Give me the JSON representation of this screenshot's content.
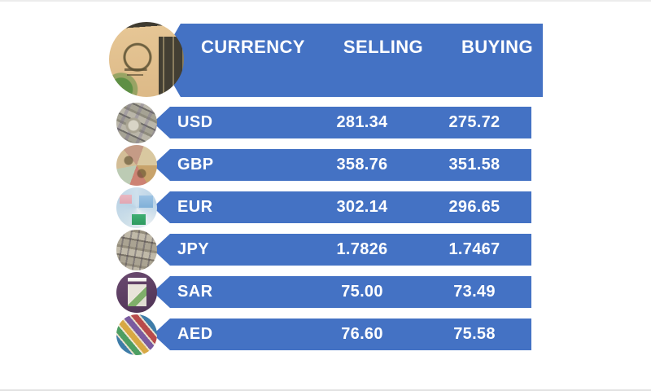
{
  "page": {
    "background": "#ffffff",
    "top_border_color": "#ececec",
    "bottom_border_color": "#e2e2e2"
  },
  "theme": {
    "bar_blue": "#4472C4",
    "text_color": "#ffffff"
  },
  "header": {
    "logo_alt": "National Bank of Pakistan building photo",
    "columns": {
      "currency": "CURRENCY",
      "selling": "SELLING",
      "buying": "BUYING"
    }
  },
  "rates": {
    "rows": [
      {
        "code": "USD",
        "selling": "281.34",
        "buying": "275.72",
        "image_alt": "US dollar banknotes"
      },
      {
        "code": "GBP",
        "selling": "358.76",
        "buying": "351.58",
        "image_alt": "British pound banknotes"
      },
      {
        "code": "EUR",
        "selling": "302.14",
        "buying": "296.65",
        "image_alt": "Euro banknotes"
      },
      {
        "code": "JPY",
        "selling": "1.7826",
        "buying": "1.7467",
        "image_alt": "Japanese yen banknotes"
      },
      {
        "code": "SAR",
        "selling": "75.00",
        "buying": "73.49",
        "image_alt": "Saudi riyal banknotes"
      },
      {
        "code": "AED",
        "selling": "76.60",
        "buying": "75.58",
        "image_alt": "UAE dirham banknotes"
      }
    ]
  },
  "chart_data": {
    "type": "table",
    "title": "Currency exchange rates board",
    "columns": [
      "CURRENCY",
      "SELLING",
      "BUYING"
    ],
    "rows": [
      [
        "USD",
        281.34,
        275.72
      ],
      [
        "GBP",
        358.76,
        351.58
      ],
      [
        "EUR",
        302.14,
        296.65
      ],
      [
        "JPY",
        1.7826,
        1.7467
      ],
      [
        "SAR",
        75.0,
        73.49
      ],
      [
        "AED",
        76.6,
        75.58
      ]
    ],
    "layout": "header banner row + 6 data rows, blue #4472C4 bars, circular photos left of each bar"
  }
}
